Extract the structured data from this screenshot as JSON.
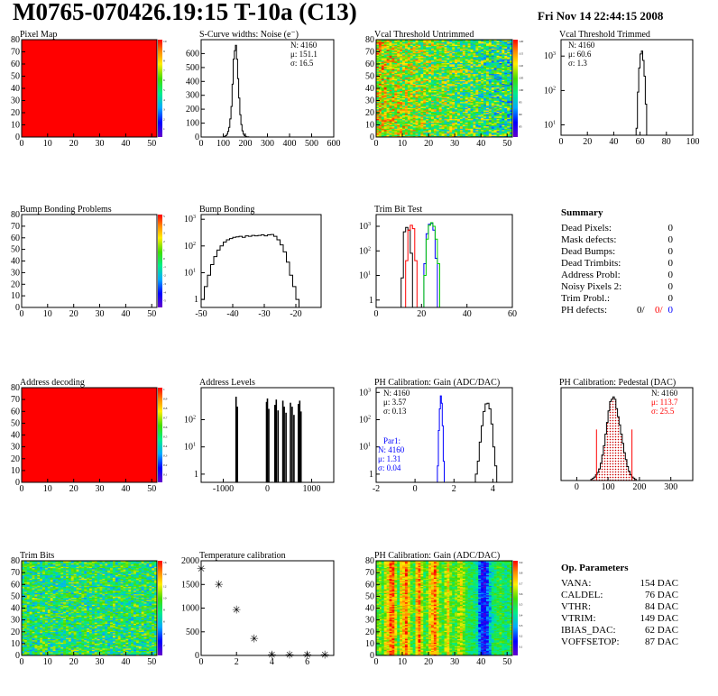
{
  "header": {
    "title": "M0765-070426.19:15 T-10a (C13)",
    "datetime": "Fri Nov 14 22:44:15 2008"
  },
  "colors": {
    "red": "#ff0000",
    "blue": "#0000ff",
    "green": "#00cc00",
    "hist": "#000000"
  },
  "chart_data": [
    {
      "id": "pixel-map",
      "type": "heatmap",
      "title": "Pixel Map",
      "xlim": [
        0,
        52
      ],
      "ylim": [
        0,
        80
      ],
      "xticks": [
        0,
        10,
        20,
        30,
        40,
        50
      ],
      "yticks": [
        0,
        10,
        20,
        30,
        40,
        50,
        60,
        70,
        80
      ],
      "fill": "uniform-max",
      "zlim": [
        0,
        10
      ],
      "zticks": [
        "1",
        "2",
        "3",
        "4",
        "5",
        "6",
        "7",
        "8",
        "9",
        "10"
      ]
    },
    {
      "id": "scurve-noise",
      "type": "bar",
      "title": "S-Curve widths: Noise (e⁻)",
      "xlim": [
        0,
        600
      ],
      "ylim": [
        0,
        700
      ],
      "xticks": [
        0,
        100,
        200,
        300,
        400,
        500,
        600
      ],
      "yticks": [
        0,
        100,
        200,
        300,
        400,
        500,
        600
      ],
      "stats": [
        "N: 4160",
        "μ: 151.1",
        "σ: 16.5"
      ],
      "bins": [
        [
          95,
          0
        ],
        [
          100,
          2
        ],
        [
          105,
          5
        ],
        [
          110,
          10
        ],
        [
          115,
          20
        ],
        [
          120,
          40
        ],
        [
          125,
          70
        ],
        [
          130,
          130
        ],
        [
          135,
          220
        ],
        [
          140,
          380
        ],
        [
          145,
          560
        ],
        [
          150,
          620
        ],
        [
          155,
          660
        ],
        [
          160,
          560
        ],
        [
          165,
          420
        ],
        [
          170,
          280
        ],
        [
          175,
          160
        ],
        [
          180,
          90
        ],
        [
          185,
          45
        ],
        [
          190,
          20
        ],
        [
          195,
          10
        ],
        [
          200,
          5
        ],
        [
          205,
          2
        ],
        [
          210,
          1
        ],
        [
          215,
          0
        ]
      ]
    },
    {
      "id": "vcal-untrimmed",
      "type": "heatmap",
      "title": "Vcal Threshold Untrimmed",
      "xlim": [
        0,
        52
      ],
      "ylim": [
        0,
        80
      ],
      "xticks": [
        0,
        10,
        20,
        30,
        40,
        50
      ],
      "yticks": [
        0,
        10,
        20,
        30,
        40,
        50,
        60,
        70,
        80
      ],
      "fill": "noise-gradient",
      "zlim": [
        80,
        120
      ],
      "zticks": [
        "85",
        "90",
        "95",
        "100",
        "105",
        "110",
        "115",
        "120"
      ]
    },
    {
      "id": "vcal-trimmed",
      "type": "bar",
      "title": "Vcal Threshold Trimmed",
      "log": true,
      "xlim": [
        0,
        100
      ],
      "ylim": [
        5,
        3000
      ],
      "xticks": [
        0,
        20,
        40,
        60,
        80,
        100
      ],
      "yticks": [
        10,
        100,
        1000
      ],
      "stats": [
        "N: 4160",
        "μ: 60.6",
        "σ: 1.3"
      ],
      "bins": [
        [
          56,
          1
        ],
        [
          57,
          8
        ],
        [
          58,
          90
        ],
        [
          59,
          450
        ],
        [
          60,
          1150
        ],
        [
          61,
          1400
        ],
        [
          62,
          750
        ],
        [
          63,
          260
        ],
        [
          64,
          40
        ],
        [
          65,
          4
        ],
        [
          66,
          1
        ]
      ]
    },
    {
      "id": "bump-problems",
      "type": "heatmap",
      "title": "Bump Bonding Problems",
      "xlim": [
        0,
        52
      ],
      "ylim": [
        0,
        80
      ],
      "xticks": [
        0,
        10,
        20,
        30,
        40,
        50
      ],
      "yticks": [
        0,
        10,
        20,
        30,
        40,
        50,
        60,
        70,
        80
      ],
      "fill": "empty",
      "zlim": [
        -5,
        5
      ],
      "zticks": [
        "-5",
        "-4",
        "-3",
        "-2",
        "-1",
        "0",
        "1",
        "2",
        "3",
        "4",
        "5"
      ]
    },
    {
      "id": "bump-bonding",
      "type": "bar",
      "title": "Bump Bonding",
      "log": true,
      "xlim": [
        -50,
        -12
      ],
      "ylim": [
        0.5,
        1500
      ],
      "xticks": [
        -50,
        -40,
        -30,
        -20
      ],
      "yticks": [
        1,
        10,
        100,
        1000
      ],
      "bins": [
        [
          -50,
          1
        ],
        [
          -49,
          3
        ],
        [
          -48,
          8
        ],
        [
          -47,
          20
        ],
        [
          -46,
          40
        ],
        [
          -45,
          70
        ],
        [
          -44,
          100
        ],
        [
          -43,
          140
        ],
        [
          -42,
          170
        ],
        [
          -41,
          190
        ],
        [
          -40,
          210
        ],
        [
          -39,
          220
        ],
        [
          -38,
          230
        ],
        [
          -37,
          210
        ],
        [
          -36,
          240
        ],
        [
          -35,
          230
        ],
        [
          -34,
          250
        ],
        [
          -33,
          240
        ],
        [
          -32,
          250
        ],
        [
          -31,
          260
        ],
        [
          -30,
          240
        ],
        [
          -29,
          260
        ],
        [
          -28,
          270
        ],
        [
          -27,
          230
        ],
        [
          -26,
          170
        ],
        [
          -25,
          110
        ],
        [
          -24,
          60
        ],
        [
          -23,
          25
        ],
        [
          -22,
          8
        ],
        [
          -21,
          3
        ],
        [
          -20,
          1
        ],
        [
          -19,
          0
        ]
      ]
    },
    {
      "id": "trim-bit-test",
      "type": "line",
      "title": "Trim Bit Test",
      "log": true,
      "xlim": [
        0,
        60
      ],
      "ylim": [
        0.5,
        3000
      ],
      "xticks": [
        0,
        20,
        40,
        60
      ],
      "yticks": [
        1,
        10,
        100,
        1000
      ],
      "series": [
        {
          "color": "#000000",
          "bins": [
            [
              10,
              0
            ],
            [
              11,
              8
            ],
            [
              12,
              600
            ],
            [
              13,
              900
            ],
            [
              14,
              700
            ],
            [
              15,
              80
            ],
            [
              16,
              0
            ]
          ]
        },
        {
          "color": "#ff0000",
          "bins": [
            [
              12,
              0
            ],
            [
              13,
              40
            ],
            [
              14,
              700
            ],
            [
              15,
              1100
            ],
            [
              16,
              800
            ],
            [
              17,
              40
            ],
            [
              18,
              0
            ]
          ]
        },
        {
          "color": "#0000ff",
          "bins": [
            [
              20,
              0
            ],
            [
              21,
              30
            ],
            [
              22,
              500
            ],
            [
              23,
              1200
            ],
            [
              24,
              1300
            ],
            [
              25,
              700
            ],
            [
              26,
              50
            ],
            [
              27,
              0
            ]
          ]
        },
        {
          "color": "#00cc00",
          "bins": [
            [
              20,
              0
            ],
            [
              21,
              10
            ],
            [
              22,
              300
            ],
            [
              23,
              1100
            ],
            [
              24,
              1400
            ],
            [
              25,
              1000
            ],
            [
              26,
              300
            ],
            [
              27,
              30
            ],
            [
              28,
              0
            ]
          ]
        }
      ]
    },
    {
      "id": "address-decoding",
      "type": "heatmap",
      "title": "Address decoding",
      "xlim": [
        0,
        52
      ],
      "ylim": [
        0,
        80
      ],
      "xticks": [
        0,
        10,
        20,
        30,
        40,
        50
      ],
      "yticks": [
        0,
        10,
        20,
        30,
        40,
        50,
        60,
        70,
        80
      ],
      "fill": "uniform-max",
      "zlim": [
        0,
        1
      ],
      "zticks": [
        "0.1",
        "0.2",
        "0.3",
        "0.4",
        "0.5",
        "0.6",
        "0.7",
        "0.8",
        "0.9",
        "1"
      ]
    },
    {
      "id": "address-levels",
      "type": "bar",
      "title": "Address Levels",
      "log": true,
      "xlim": [
        -1500,
        1500
      ],
      "ylim": [
        0.5,
        1500
      ],
      "xticks": [
        -1000,
        0,
        1000
      ],
      "yticks": [
        1,
        10,
        100
      ],
      "spikes": [
        [
          -710,
          700
        ],
        [
          -680,
          300
        ],
        [
          -20,
          450
        ],
        [
          0,
          600
        ],
        [
          30,
          250
        ],
        [
          170,
          350
        ],
        [
          200,
          550
        ],
        [
          240,
          220
        ],
        [
          350,
          500
        ],
        [
          380,
          300
        ],
        [
          420,
          180
        ],
        [
          520,
          420
        ],
        [
          560,
          300
        ],
        [
          600,
          150
        ],
        [
          700,
          380
        ],
        [
          730,
          500
        ],
        [
          760,
          200
        ]
      ]
    },
    {
      "id": "ph-gain",
      "type": "bar",
      "title": "PH Calibration: Gain (ADC/DAC)",
      "log": true,
      "xlim": [
        -2,
        5
      ],
      "ylim": [
        0.5,
        1500
      ],
      "xticks": [
        -2,
        0,
        2,
        4
      ],
      "yticks": [
        1,
        10,
        100,
        1000
      ],
      "stats": [
        "N: 4160",
        "μ: 3.57",
        "σ: 0.13"
      ],
      "stats2": [
        "Par1:",
        "N: 4160",
        "μ: 1.31",
        "σ: 0.04"
      ],
      "bins": [
        [
          3.0,
          0
        ],
        [
          3.1,
          1
        ],
        [
          3.2,
          3
        ],
        [
          3.3,
          15
        ],
        [
          3.4,
          60
        ],
        [
          3.5,
          200
        ],
        [
          3.6,
          380
        ],
        [
          3.7,
          400
        ],
        [
          3.8,
          250
        ],
        [
          3.9,
          70
        ],
        [
          4.0,
          10
        ],
        [
          4.1,
          2
        ],
        [
          4.2,
          0
        ]
      ],
      "bins2": [
        [
          1.1,
          0
        ],
        [
          1.15,
          2
        ],
        [
          1.2,
          40
        ],
        [
          1.25,
          250
        ],
        [
          1.3,
          750
        ],
        [
          1.35,
          400
        ],
        [
          1.4,
          60
        ],
        [
          1.45,
          3
        ],
        [
          1.5,
          0
        ]
      ]
    },
    {
      "id": "ph-pedestal",
      "type": "bar",
      "title": "PH Calibration: Pedestal (DAC)",
      "xlim": [
        -50,
        370
      ],
      "ylim": [
        0,
        80
      ],
      "xticks": [
        0,
        100,
        200,
        300
      ],
      "yticks": [],
      "stats": [
        "N: 4160",
        "μ: 113.7",
        "σ: 25.5"
      ],
      "bins": [
        [
          40,
          0
        ],
        [
          45,
          1
        ],
        [
          50,
          2
        ],
        [
          55,
          3
        ],
        [
          60,
          5
        ],
        [
          65,
          7
        ],
        [
          70,
          10
        ],
        [
          75,
          15
        ],
        [
          80,
          22
        ],
        [
          85,
          30
        ],
        [
          90,
          40
        ],
        [
          95,
          50
        ],
        [
          100,
          60
        ],
        [
          105,
          68
        ],
        [
          110,
          70
        ],
        [
          115,
          72
        ],
        [
          120,
          70
        ],
        [
          125,
          62
        ],
        [
          130,
          55
        ],
        [
          135,
          48
        ],
        [
          140,
          40
        ],
        [
          145,
          32
        ],
        [
          150,
          24
        ],
        [
          155,
          18
        ],
        [
          160,
          12
        ],
        [
          165,
          8
        ],
        [
          170,
          5
        ],
        [
          175,
          3
        ],
        [
          180,
          2
        ],
        [
          185,
          1
        ],
        [
          190,
          0
        ]
      ],
      "fit_lo": 63,
      "fit_hi": 176
    },
    {
      "id": "trim-bits",
      "type": "heatmap",
      "title": "Trim Bits",
      "xlim": [
        0,
        52
      ],
      "ylim": [
        0,
        80
      ],
      "xticks": [
        0,
        10,
        20,
        30,
        40,
        50
      ],
      "yticks": [
        0,
        10,
        20,
        30,
        40,
        50,
        60,
        70,
        80
      ],
      "fill": "noise-mid",
      "zlim": [
        0,
        16
      ],
      "zticks": [
        "2",
        "4",
        "6",
        "8",
        "10",
        "12",
        "14",
        "16"
      ]
    },
    {
      "id": "temp-calibration",
      "type": "scatter",
      "title": "Temperature calibration",
      "xlim": [
        0,
        7.5
      ],
      "ylim": [
        0,
        2000
      ],
      "xticks": [
        0,
        2,
        4,
        6
      ],
      "yticks": [
        0,
        500,
        1000,
        1500,
        2000
      ],
      "points": [
        [
          0,
          1830
        ],
        [
          1,
          1500
        ],
        [
          2,
          960
        ],
        [
          3,
          350
        ],
        [
          4,
          10
        ],
        [
          5,
          10
        ],
        [
          6,
          10
        ],
        [
          7,
          10
        ]
      ]
    },
    {
      "id": "ph-gain-map",
      "type": "heatmap",
      "title": "PH Calibration: Gain (ADC/DAC)",
      "xlim": [
        0,
        52
      ],
      "ylim": [
        0,
        80
      ],
      "xticks": [
        0,
        10,
        20,
        30,
        40,
        50
      ],
      "yticks": [
        0,
        10,
        20,
        30,
        40,
        50,
        60,
        70,
        80
      ],
      "fill": "column-stripes",
      "zlim": [
        3,
        4
      ],
      "zticks": [
        "3.1",
        "3.2",
        "3.3",
        "3.4",
        "3.5",
        "3.6",
        "3.7",
        "3.8",
        "3.9"
      ]
    }
  ],
  "summary": {
    "title": "Summary",
    "rows": [
      {
        "label": "Dead Pixels:",
        "value": "0"
      },
      {
        "label": "Mask defects:",
        "value": "0"
      },
      {
        "label": "Dead Bumps:",
        "value": "0"
      },
      {
        "label": "Dead Trimbits:",
        "value": "0"
      },
      {
        "label": "Address Probl:",
        "value": "0"
      },
      {
        "label": "Noisy Pixels 2:",
        "value": "0"
      },
      {
        "label": "Trim Probl.:",
        "value": "0"
      }
    ],
    "ph_defects": {
      "label": "PH defects:",
      "v1": "0/",
      "v2": "0/",
      "v3": "0"
    }
  },
  "op_params": {
    "title": "Op. Parameters",
    "rows": [
      {
        "label": "VANA:",
        "value": "154 DAC"
      },
      {
        "label": "CALDEL:",
        "value": "76 DAC"
      },
      {
        "label": "VTHR:",
        "value": "84 DAC"
      },
      {
        "label": "VTRIM:",
        "value": "149 DAC"
      },
      {
        "label": "IBIAS_DAC:",
        "value": "62 DAC"
      },
      {
        "label": "VOFFSETOP:",
        "value": "87 DAC"
      }
    ]
  }
}
